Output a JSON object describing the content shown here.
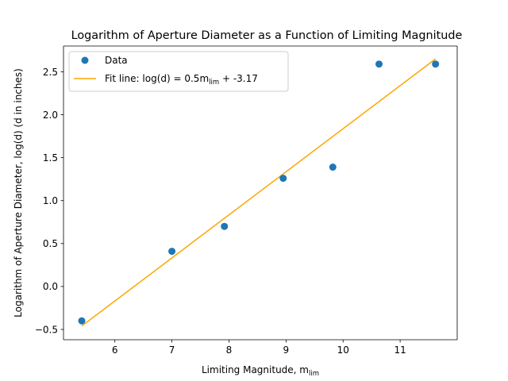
{
  "chart_data": {
    "type": "scatter",
    "title": "Logarithm of Aperture Diameter as a Function of Limiting Magnitude",
    "xlabel": {
      "main": "Limiting Magnitude, m",
      "sub": "lim"
    },
    "ylabel": "Logarithm of Aperture Diameter, log(d) (d in inches)",
    "xlim": [
      5.1,
      12.0
    ],
    "ylim": [
      -0.62,
      2.8
    ],
    "xticks": [
      6,
      7,
      8,
      9,
      10,
      11
    ],
    "xtick_labels": [
      "6",
      "7",
      "8",
      "9",
      "10",
      "11"
    ],
    "yticks": [
      -0.5,
      0.0,
      0.5,
      1.0,
      1.5,
      2.0,
      2.5
    ],
    "ytick_labels": [
      "−0.5",
      "0.0",
      "0.5",
      "1.0",
      "1.5",
      "2.0",
      "2.5"
    ],
    "grid": false,
    "legend_position": "top-left",
    "series": [
      {
        "name": "Data",
        "kind": "scatter",
        "color": "#1f77b4",
        "x": [
          5.42,
          7.0,
          7.92,
          8.95,
          9.82,
          10.63,
          11.62
        ],
        "y": [
          -0.4,
          0.41,
          0.7,
          1.26,
          1.39,
          2.59,
          2.59
        ]
      },
      {
        "name": "Fit line: log(d) = 0.5m",
        "name_sub": "lim",
        "name_suffix": " + -3.17",
        "kind": "line",
        "color": "#ffa500",
        "x": [
          5.42,
          11.62
        ],
        "y": [
          -0.46,
          2.65
        ]
      }
    ]
  }
}
